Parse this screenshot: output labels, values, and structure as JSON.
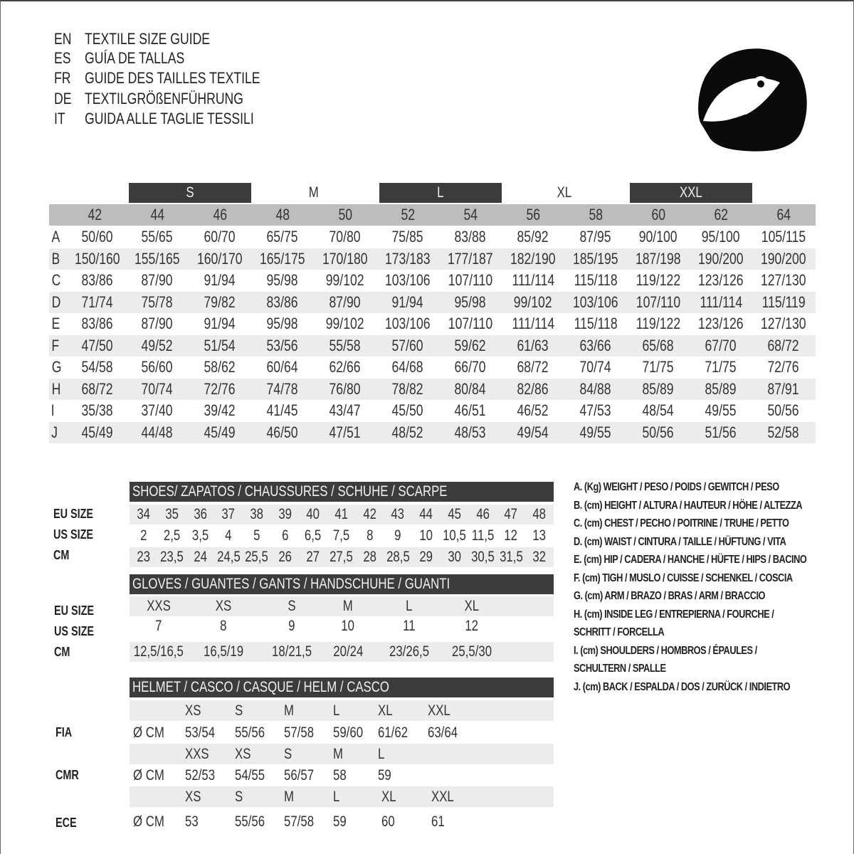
{
  "titles": [
    {
      "code": "EN",
      "text": "TEXTILE SIZE GUIDE"
    },
    {
      "code": "ES",
      "text": "GUÍA DE TALLAS"
    },
    {
      "code": "FR",
      "text": "GUIDE DES TAILLES TEXTILE"
    },
    {
      "code": "DE",
      "text": "TEXTILGRÖßENFÜHRUNG"
    },
    {
      "code": "IT",
      "text": "GUIDA ALLE TAGLIE TESSILI"
    }
  ],
  "helmet_icon": "helmet-icon",
  "colors": {
    "dark_bar": "#3c3c3c",
    "header_gray": "#bdbdbd",
    "stripe": "#ececec"
  },
  "textile": {
    "size_groups": [
      "S",
      "M",
      "L",
      "XL",
      "XXL"
    ],
    "sizes": [
      "42",
      "44",
      "46",
      "48",
      "50",
      "52",
      "54",
      "56",
      "58",
      "60",
      "62",
      "64"
    ],
    "rows": [
      {
        "label": "A",
        "values": [
          "50/60",
          "55/65",
          "60/70",
          "65/75",
          "70/80",
          "75/85",
          "83/88",
          "85/92",
          "87/95",
          "90/100",
          "95/100",
          "105/115"
        ]
      },
      {
        "label": "B",
        "values": [
          "150/160",
          "155/165",
          "160/170",
          "165/175",
          "170/180",
          "173/183",
          "177/187",
          "182/190",
          "185/195",
          "187/198",
          "190/200",
          "190/200"
        ]
      },
      {
        "label": "C",
        "values": [
          "83/86",
          "87/90",
          "91/94",
          "95/98",
          "99/102",
          "103/106",
          "107/110",
          "111/114",
          "115/118",
          "119/122",
          "123/126",
          "127/130"
        ]
      },
      {
        "label": "D",
        "values": [
          "71/74",
          "75/78",
          "79/82",
          "83/86",
          "87/90",
          "91/94",
          "95/98",
          "99/102",
          "103/106",
          "107/110",
          "111/114",
          "115/119"
        ]
      },
      {
        "label": "E",
        "values": [
          "83/86",
          "87/90",
          "91/94",
          "95/98",
          "99/102",
          "103/106",
          "107/110",
          "111/114",
          "115/118",
          "119/122",
          "123/126",
          "127/130"
        ]
      },
      {
        "label": "F",
        "values": [
          "47/50",
          "49/52",
          "51/54",
          "53/56",
          "55/58",
          "57/60",
          "59/62",
          "61/63",
          "63/66",
          "65/68",
          "67/70",
          "68/72"
        ]
      },
      {
        "label": "G",
        "values": [
          "54/58",
          "56/60",
          "58/62",
          "60/64",
          "62/66",
          "64/68",
          "66/70",
          "68/72",
          "70/74",
          "71/75",
          "71/75",
          "72/76"
        ]
      },
      {
        "label": "H",
        "values": [
          "68/72",
          "70/74",
          "72/76",
          "74/78",
          "76/80",
          "78/82",
          "80/84",
          "82/86",
          "84/88",
          "85/89",
          "85/89",
          "87/91"
        ]
      },
      {
        "label": "I",
        "values": [
          "35/38",
          "37/40",
          "39/42",
          "41/45",
          "43/47",
          "45/50",
          "46/51",
          "46/52",
          "47/53",
          "48/54",
          "49/55",
          "50/56"
        ]
      },
      {
        "label": "J",
        "values": [
          "45/49",
          "44/48",
          "45/49",
          "46/50",
          "47/51",
          "48/52",
          "48/53",
          "49/54",
          "49/55",
          "50/56",
          "51/56",
          "52/58"
        ]
      }
    ]
  },
  "shoes": {
    "title": "SHOES/ ZAPATOS / CHAUSSURES / SCHUHE / SCARPE",
    "rows": [
      {
        "label": "EU SIZE",
        "values": [
          "34",
          "35",
          "36",
          "37",
          "38",
          "39",
          "40",
          "41",
          "42",
          "43",
          "44",
          "45",
          "46",
          "47",
          "48"
        ]
      },
      {
        "label": "US SIZE",
        "values": [
          "2",
          "2,5",
          "3,5",
          "4",
          "5",
          "6",
          "6,5",
          "7,5",
          "8",
          "9",
          "10",
          "10,5",
          "11,5",
          "12",
          "13"
        ]
      },
      {
        "label": "CM",
        "values": [
          "23",
          "23,5",
          "24",
          "24,5",
          "25,5",
          "26",
          "27",
          "27,5",
          "28",
          "28,5",
          "29",
          "30",
          "30,5",
          "31,5",
          "32"
        ]
      }
    ]
  },
  "gloves": {
    "title": "GLOVES / GUANTES / GANTS / HANDSCHUHE / GUANTI",
    "rows": [
      {
        "label": "EU SIZE",
        "values": [
          "XXS",
          "XS",
          "S",
          "M",
          "L",
          "XL"
        ]
      },
      {
        "label": "US SIZE",
        "values": [
          "7",
          "8",
          "9",
          "10",
          "11",
          "12"
        ]
      },
      {
        "label": "CM",
        "values": [
          "12,5/16,5",
          "16,5/19",
          "18/21,5",
          "20/24",
          "23/26,5",
          "25,5/30"
        ]
      }
    ]
  },
  "helmet": {
    "title": "HELMET / CASCO / CASQUE / HELM / CASCO",
    "unit": "Ø CM",
    "standards": [
      {
        "label": "FIA",
        "sizes": [
          "XS",
          "S",
          "M",
          "L",
          "XL",
          "XXL"
        ],
        "values": [
          "53/54",
          "55/56",
          "57/58",
          "59/60",
          "61/62",
          "63/64"
        ]
      },
      {
        "label": "CMR",
        "sizes": [
          "XXS",
          "XS",
          "S",
          "M",
          "L"
        ],
        "values": [
          "52/53",
          "54/55",
          "56/57",
          "58",
          "59"
        ]
      },
      {
        "label": "ECE",
        "sizes": [
          "XS",
          "S",
          "M",
          "L",
          "XL",
          "XXL"
        ],
        "values": [
          "53",
          "55/56",
          "57/58",
          "59",
          "60",
          "61"
        ]
      }
    ]
  },
  "legend": [
    "A. (Kg) WEIGHT / PESO / POIDS / GEWITCH / PESO",
    "B. (cm) HEIGHT / ALTURA / HAUTEUR / HÖHE / ALTEZZA",
    "C. (cm) CHEST / PECHO / POITRINE / TRUHE / PETTO",
    "D. (cm) WAIST / CINTURA / TAILLE / HÜFTUNG / VITA",
    "E. (cm) HIP / CADERA / HANCHE / HÜFTE / HIPS /  BACINO",
    "F.  (cm) TIGH / MUSLO / CUISSE / SCHENKEL / COSCIA",
    "G. (cm) ARM  / BRAZO / BRAS / ARM / BRACCIO",
    "H. (cm) INSIDE LEG / ENTREPIERNA / FOURCHE /",
    "SCHRITT / FORCELLA",
    "I.  (cm) SHOULDERS / HOMBROS / ÉPAULES /",
    "SCHULTERN / SPALLE",
    "J. (cm) BACK / ESPALDA / DOS / ZURÜCK / INDIETRO"
  ]
}
